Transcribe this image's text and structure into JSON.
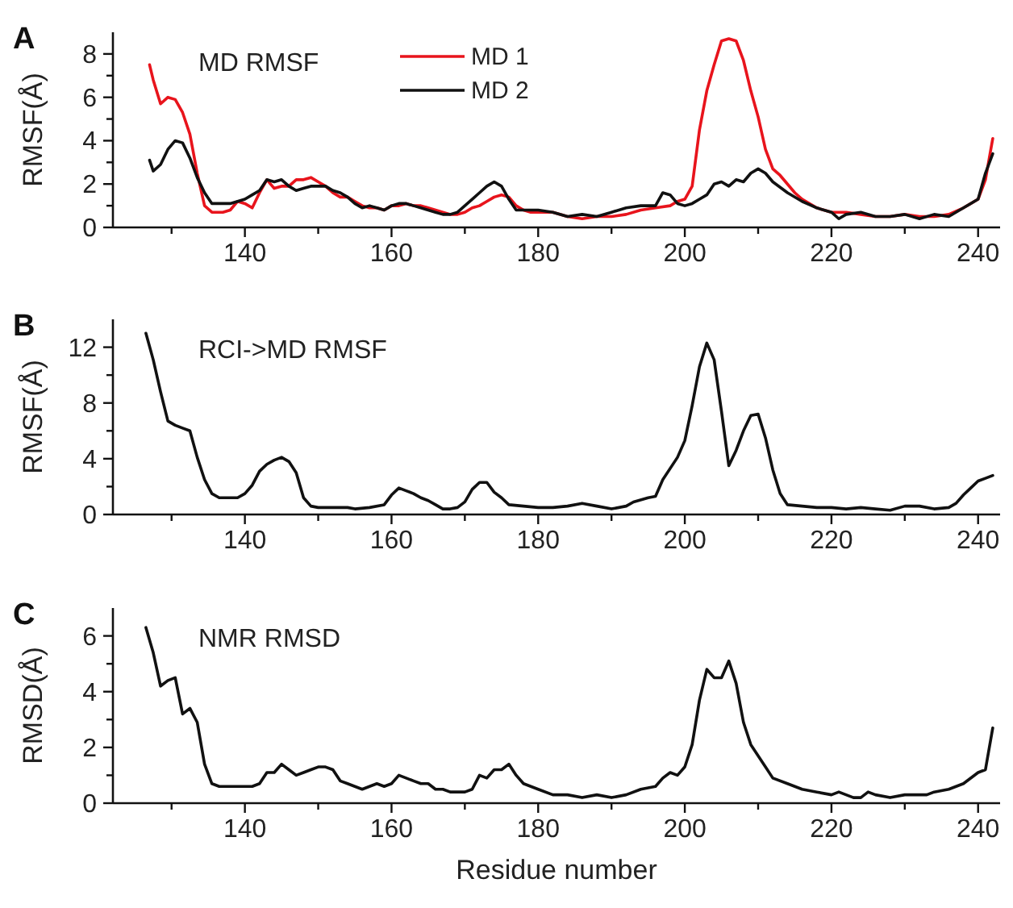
{
  "chart_data": [
    {
      "type": "line",
      "title": "A",
      "annotations": [
        "MD RMSF"
      ],
      "ylabel": "RMSF(Å)",
      "legend": "top",
      "xlim": [
        122,
        243
      ],
      "xticks": [
        {
          "value": 130,
          "label": null
        },
        140,
        {
          "value": 150,
          "label": null
        },
        160,
        {
          "value": 170,
          "label": null
        },
        180,
        {
          "value": 190,
          "label": null
        },
        200,
        {
          "value": 210,
          "label": null
        },
        220,
        {
          "value": 230,
          "label": null
        },
        240
      ],
      "ylim": [
        0,
        9
      ],
      "yticks": [
        0,
        {
          "value": 1,
          "label": null
        },
        2,
        {
          "value": 3,
          "label": null
        },
        4,
        {
          "value": 5,
          "label": null
        },
        6,
        {
          "value": 7,
          "label": null
        },
        8
      ],
      "series": [
        {
          "name": "MD 1",
          "color": "#e8141c",
          "x": [
            127,
            127.5,
            128.5,
            129.5,
            130.5,
            131.5,
            132.5,
            133.5,
            134.5,
            135.5,
            137,
            138,
            139,
            140,
            141,
            142,
            143,
            144,
            145,
            146,
            147,
            148,
            149,
            150,
            151,
            152,
            153,
            154,
            155,
            156,
            157,
            158,
            159,
            160,
            161,
            162,
            163,
            164,
            165,
            166,
            167,
            168,
            169,
            170,
            171,
            172,
            173,
            174,
            175,
            176,
            177,
            178,
            179,
            180,
            182,
            184,
            186,
            188,
            190,
            192,
            194,
            196,
            198,
            199,
            200,
            201,
            202,
            203,
            204,
            205,
            206,
            207,
            208,
            209,
            210,
            211,
            212,
            213,
            214,
            215,
            216,
            218,
            220,
            222,
            224,
            226,
            228,
            230,
            232,
            234,
            236,
            238,
            240,
            241,
            242
          ],
          "values": [
            7.5,
            6.8,
            5.7,
            6.0,
            5.9,
            5.3,
            4.3,
            2.5,
            1.0,
            0.7,
            0.7,
            0.8,
            1.2,
            1.1,
            0.9,
            1.6,
            2.2,
            1.8,
            1.9,
            1.9,
            2.2,
            2.2,
            2.3,
            2.1,
            1.9,
            1.6,
            1.4,
            1.4,
            1.2,
            1.0,
            0.9,
            0.9,
            0.8,
            1.0,
            1.0,
            1.1,
            1.0,
            1.0,
            0.9,
            0.8,
            0.7,
            0.6,
            0.6,
            0.7,
            0.9,
            1.0,
            1.2,
            1.4,
            1.5,
            1.4,
            1.0,
            0.8,
            0.7,
            0.7,
            0.7,
            0.5,
            0.4,
            0.5,
            0.5,
            0.6,
            0.8,
            0.9,
            1.0,
            1.2,
            1.3,
            1.9,
            4.5,
            6.3,
            7.5,
            8.6,
            8.7,
            8.6,
            7.7,
            6.3,
            5.1,
            3.6,
            2.7,
            2.4,
            2.0,
            1.6,
            1.3,
            0.9,
            0.7,
            0.7,
            0.6,
            0.5,
            0.5,
            0.6,
            0.5,
            0.5,
            0.6,
            0.9,
            1.3,
            2.2,
            4.1
          ]
        },
        {
          "name": "MD 2",
          "color": "#111111",
          "x": [
            127,
            127.5,
            128.5,
            129.5,
            130.5,
            131.5,
            132.5,
            133.5,
            134.5,
            135.5,
            137,
            138,
            139,
            140,
            141,
            142,
            143,
            144,
            145,
            146,
            147,
            148,
            149,
            150,
            151,
            152,
            153,
            154,
            155,
            156,
            157,
            158,
            159,
            160,
            161,
            162,
            163,
            164,
            165,
            166,
            167,
            168,
            169,
            170,
            171,
            172,
            173,
            174,
            175,
            176,
            177,
            178,
            180,
            182,
            184,
            186,
            188,
            190,
            192,
            194,
            196,
            197,
            198,
            199,
            200,
            201,
            202,
            203,
            204,
            205,
            206,
            207,
            208,
            209,
            210,
            211,
            212,
            214,
            216,
            218,
            220,
            221,
            222,
            224,
            226,
            228,
            230,
            232,
            234,
            236,
            238,
            240,
            241,
            242
          ],
          "values": [
            3.1,
            2.6,
            2.9,
            3.6,
            4.0,
            3.9,
            3.2,
            2.3,
            1.6,
            1.1,
            1.1,
            1.1,
            1.2,
            1.3,
            1.5,
            1.7,
            2.2,
            2.1,
            2.2,
            1.9,
            1.7,
            1.8,
            1.9,
            1.9,
            1.9,
            1.7,
            1.6,
            1.4,
            1.1,
            0.9,
            1.0,
            0.9,
            0.8,
            1.0,
            1.1,
            1.1,
            1.0,
            0.9,
            0.8,
            0.7,
            0.6,
            0.6,
            0.7,
            1.0,
            1.3,
            1.6,
            1.9,
            2.1,
            1.9,
            1.3,
            0.8,
            0.8,
            0.8,
            0.7,
            0.5,
            0.6,
            0.5,
            0.7,
            0.9,
            1.0,
            1.0,
            1.6,
            1.5,
            1.1,
            1.0,
            1.1,
            1.3,
            1.5,
            2.0,
            2.1,
            1.9,
            2.2,
            2.1,
            2.5,
            2.7,
            2.5,
            2.1,
            1.6,
            1.2,
            0.9,
            0.7,
            0.4,
            0.6,
            0.7,
            0.5,
            0.5,
            0.6,
            0.4,
            0.6,
            0.5,
            0.9,
            1.3,
            2.5,
            3.4
          ]
        }
      ]
    },
    {
      "type": "line",
      "title": "B",
      "annotations": [
        "RCI->MD RMSF"
      ],
      "ylabel": "RMSF(Å)",
      "xlim": [
        122,
        243
      ],
      "xticks": [
        {
          "value": 130,
          "label": null
        },
        140,
        {
          "value": 150,
          "label": null
        },
        160,
        {
          "value": 170,
          "label": null
        },
        180,
        {
          "value": 190,
          "label": null
        },
        200,
        {
          "value": 210,
          "label": null
        },
        220,
        {
          "value": 230,
          "label": null
        },
        240
      ],
      "ylim": [
        0,
        14
      ],
      "yticks": [
        0,
        {
          "value": 2,
          "label": null
        },
        4,
        {
          "value": 6,
          "label": null
        },
        8,
        {
          "value": 10,
          "label": null
        },
        12
      ],
      "x": [
        126.5,
        127.5,
        128.5,
        129.5,
        130.5,
        131.5,
        132.5,
        133.5,
        134.5,
        135.5,
        136.5,
        138,
        139,
        140,
        141,
        142,
        143,
        144,
        145,
        146,
        147,
        148,
        149,
        150,
        152,
        154,
        155,
        157,
        159,
        160,
        161,
        162,
        163,
        164,
        165,
        166,
        167,
        168,
        169,
        170,
        171,
        172,
        173,
        174,
        175,
        176,
        178,
        180,
        182,
        184,
        186,
        188,
        190,
        192,
        193,
        195,
        196,
        197,
        199,
        200,
        201,
        202,
        203,
        204,
        205,
        206,
        207,
        208,
        209,
        210,
        211,
        212,
        213,
        214,
        216,
        218,
        220,
        222,
        224,
        226,
        228,
        230,
        232,
        234,
        236,
        237,
        238,
        239,
        240,
        241,
        242
      ],
      "values": [
        13.0,
        11.1,
        8.8,
        6.7,
        6.4,
        6.2,
        6.0,
        4.1,
        2.5,
        1.5,
        1.2,
        1.2,
        1.2,
        1.5,
        2.1,
        3.1,
        3.6,
        3.9,
        4.1,
        3.8,
        3.0,
        1.2,
        0.6,
        0.5,
        0.5,
        0.5,
        0.4,
        0.5,
        0.7,
        1.4,
        1.9,
        1.7,
        1.5,
        1.2,
        1.0,
        0.7,
        0.4,
        0.4,
        0.5,
        0.9,
        1.8,
        2.3,
        2.3,
        1.6,
        1.2,
        0.7,
        0.6,
        0.5,
        0.5,
        0.6,
        0.8,
        0.6,
        0.4,
        0.6,
        0.9,
        1.2,
        1.3,
        2.5,
        4.1,
        5.3,
        7.8,
        10.6,
        12.3,
        11.1,
        7.4,
        3.5,
        4.6,
        6.0,
        7.1,
        7.2,
        5.5,
        3.2,
        1.5,
        0.7,
        0.6,
        0.5,
        0.5,
        0.4,
        0.5,
        0.4,
        0.3,
        0.6,
        0.6,
        0.4,
        0.5,
        0.8,
        1.4,
        1.9,
        2.4,
        2.6,
        2.8
      ]
    },
    {
      "type": "line",
      "title": "C",
      "annotations": [
        "NMR RMSD"
      ],
      "ylabel": "RMSD(Å)",
      "xlabel": "Residue number",
      "xlim": [
        122,
        243
      ],
      "xticks": [
        {
          "value": 130,
          "label": null
        },
        140,
        {
          "value": 150,
          "label": null
        },
        160,
        {
          "value": 170,
          "label": null
        },
        180,
        {
          "value": 190,
          "label": null
        },
        200,
        {
          "value": 210,
          "label": null
        },
        220,
        {
          "value": 230,
          "label": null
        },
        240
      ],
      "ylim": [
        0,
        7
      ],
      "yticks": [
        0,
        {
          "value": 1,
          "label": null
        },
        2,
        {
          "value": 3,
          "label": null
        },
        4,
        {
          "value": 5,
          "label": null
        },
        6
      ],
      "x": [
        126.5,
        127.5,
        128.5,
        129.5,
        130.5,
        131.5,
        132.5,
        133.5,
        134.5,
        135.5,
        136.5,
        138,
        140,
        141,
        142,
        143,
        144,
        145,
        146,
        147,
        148,
        149,
        150,
        151,
        152,
        153,
        154,
        155,
        156,
        157,
        158,
        159,
        160,
        161,
        162,
        163,
        164,
        165,
        166,
        167,
        168,
        170,
        171,
        172,
        173,
        174,
        175,
        176,
        177,
        178,
        180,
        182,
        184,
        186,
        188,
        190,
        192,
        194,
        196,
        197,
        198,
        199,
        200,
        201,
        202,
        203,
        204,
        205,
        206,
        207,
        208,
        209,
        210,
        211,
        212,
        214,
        216,
        218,
        220,
        221,
        222,
        223,
        224,
        225,
        226,
        228,
        230,
        232,
        233,
        234,
        236,
        238,
        240,
        241,
        242
      ],
      "values": [
        6.3,
        5.4,
        4.2,
        4.4,
        4.5,
        3.2,
        3.4,
        2.9,
        1.4,
        0.7,
        0.6,
        0.6,
        0.6,
        0.6,
        0.7,
        1.1,
        1.1,
        1.4,
        1.2,
        1.0,
        1.1,
        1.2,
        1.3,
        1.3,
        1.2,
        0.8,
        0.7,
        0.6,
        0.5,
        0.6,
        0.7,
        0.6,
        0.7,
        1.0,
        0.9,
        0.8,
        0.7,
        0.7,
        0.5,
        0.5,
        0.4,
        0.4,
        0.5,
        1.0,
        0.9,
        1.2,
        1.2,
        1.4,
        1.0,
        0.7,
        0.5,
        0.3,
        0.3,
        0.2,
        0.3,
        0.2,
        0.3,
        0.5,
        0.6,
        0.9,
        1.1,
        1.0,
        1.3,
        2.1,
        3.7,
        4.8,
        4.5,
        4.5,
        5.1,
        4.3,
        2.9,
        2.1,
        1.7,
        1.3,
        0.9,
        0.7,
        0.5,
        0.4,
        0.3,
        0.4,
        0.3,
        0.2,
        0.2,
        0.4,
        0.3,
        0.2,
        0.3,
        0.3,
        0.3,
        0.4,
        0.5,
        0.7,
        1.1,
        1.2,
        2.7
      ]
    }
  ]
}
